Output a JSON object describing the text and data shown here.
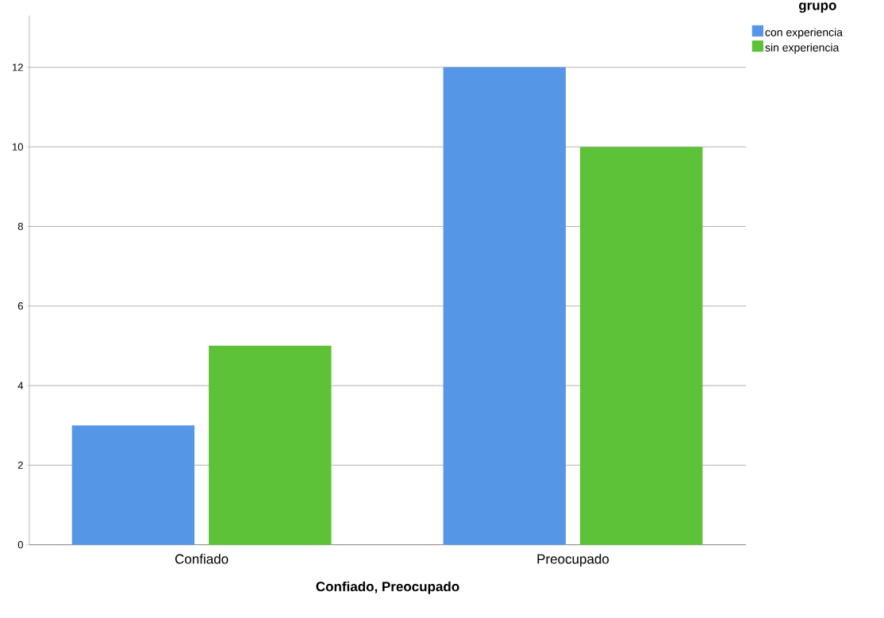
{
  "chart_data": {
    "type": "bar",
    "xlabel": "Confiado, Preocupado",
    "legend_title": "grupo",
    "categories": [
      "Confiado",
      "Preocupado"
    ],
    "series": [
      {
        "name": "con experiencia",
        "color": "#5596e6",
        "values": [
          3,
          12
        ]
      },
      {
        "name": "sin experiencia",
        "color": "#5ec238",
        "values": [
          5,
          10
        ]
      }
    ],
    "ylim": [
      0,
      13.3
    ],
    "yticks": [
      0,
      2,
      4,
      6,
      8,
      10,
      12
    ],
    "grid": "y",
    "legend": "top right"
  }
}
